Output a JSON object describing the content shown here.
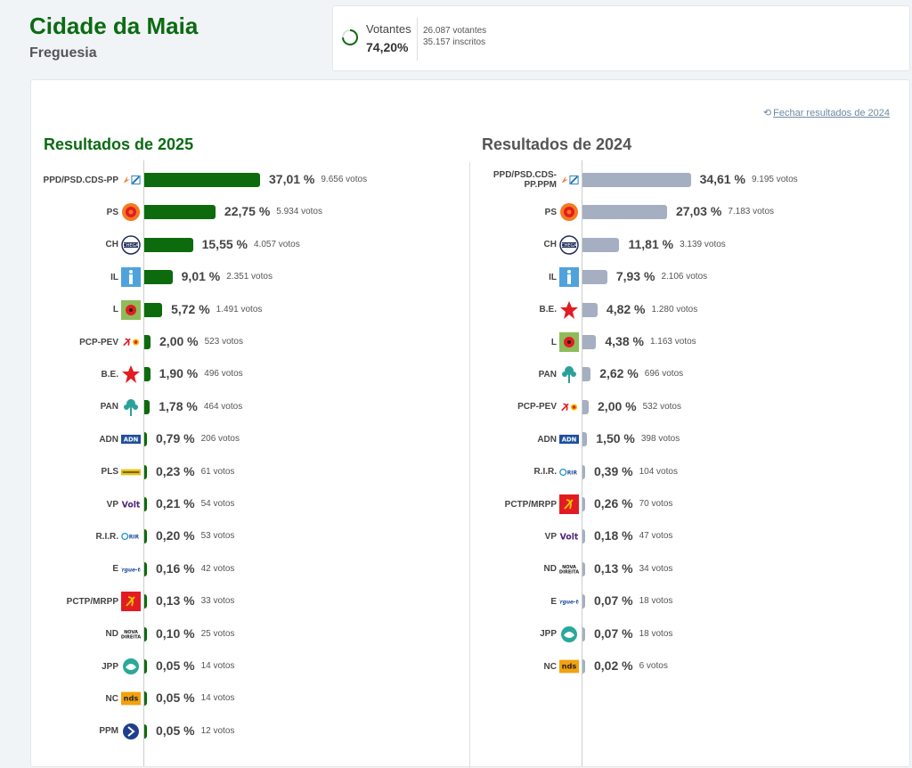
{
  "header": {
    "title": "Cidade da Maia",
    "subtitle": "Freguesia",
    "turnout": {
      "label": "Votantes",
      "percent": "74,20%",
      "percent_value": 74.2,
      "votantes": "26.087 votantes",
      "inscritos": "35.157 inscritos"
    }
  },
  "main": {
    "close_link": "Fechar resultados de 2024",
    "title_2025": "Resultados de 2025",
    "title_2024": "Resultados de 2024"
  },
  "colors": {
    "bar_2025": "#0d6b0d",
    "bar_2024": "#a5afc1",
    "title_green": "#0b6b12"
  },
  "chart_data": [
    {
      "type": "bar",
      "title": "Resultados de 2025",
      "orientation": "horizontal",
      "categories": [
        "PPD/PSD.CDS-PP",
        "PS",
        "CH",
        "IL",
        "L",
        "PCP-PEV",
        "B.E.",
        "PAN",
        "ADN",
        "PLS",
        "VP",
        "R.I.R.",
        "E",
        "PCTP/MRPP",
        "ND",
        "JPP",
        "NC",
        "PPM"
      ],
      "values": [
        37.01,
        22.75,
        15.55,
        9.01,
        5.72,
        2.0,
        1.9,
        1.78,
        0.79,
        0.23,
        0.21,
        0.2,
        0.16,
        0.13,
        0.1,
        0.05,
        0.05,
        0.05
      ],
      "value_labels": [
        "37,01 %",
        "22,75 %",
        "15,55 %",
        "9,01 %",
        "5,72 %",
        "2,00 %",
        "1,90 %",
        "1,78 %",
        "0,79 %",
        "0,23 %",
        "0,21 %",
        "0,20 %",
        "0,16 %",
        "0,13 %",
        "0,10 %",
        "0,05 %",
        "0,05 %",
        "0,05 %"
      ],
      "votes": [
        "9.656 votos",
        "5.934 votos",
        "4.057 votos",
        "2.351 votos",
        "1.491 votos",
        "523 votos",
        "496 votos",
        "464 votos",
        "206 votos",
        "61 votos",
        "54 votos",
        "53 votos",
        "42 votos",
        "33 votos",
        "25 votos",
        "14 votos",
        "14 votos",
        "12 votos"
      ],
      "logos": [
        "psd",
        "ps",
        "ch",
        "il",
        "l",
        "pcp",
        "be",
        "pan",
        "adn",
        "pls",
        "vp",
        "rir",
        "e",
        "pctp",
        "nd",
        "jpp",
        "nc",
        "ppm"
      ]
    },
    {
      "type": "bar",
      "title": "Resultados de 2024",
      "orientation": "horizontal",
      "categories": [
        "PPD/PSD.CDS-PP.PPM",
        "PS",
        "CH",
        "IL",
        "B.E.",
        "L",
        "PAN",
        "PCP-PEV",
        "ADN",
        "R.I.R.",
        "PCTP/MRPP",
        "VP",
        "ND",
        "E",
        "JPP",
        "NC"
      ],
      "values": [
        34.61,
        27.03,
        11.81,
        7.93,
        4.82,
        4.38,
        2.62,
        2.0,
        1.5,
        0.39,
        0.26,
        0.18,
        0.13,
        0.07,
        0.07,
        0.02
      ],
      "value_labels": [
        "34,61 %",
        "27,03 %",
        "11,81 %",
        "7,93 %",
        "4,82 %",
        "4,38 %",
        "2,62 %",
        "2,00 %",
        "1,50 %",
        "0,39 %",
        "0,26 %",
        "0,18 %",
        "0,13 %",
        "0,07 %",
        "0,07 %",
        "0,02 %"
      ],
      "votes": [
        "9.195 votos",
        "7.183 votos",
        "3.139 votos",
        "2.106 votos",
        "1.280 votos",
        "1.163 votos",
        "696 votos",
        "532 votos",
        "398 votos",
        "104 votos",
        "70 votos",
        "47 votos",
        "34 votos",
        "18 votos",
        "18 votos",
        "6 votos"
      ],
      "logos": [
        "psd",
        "ps",
        "ch",
        "il",
        "be",
        "l",
        "pan",
        "pcp",
        "adn",
        "rir",
        "pctp",
        "vp",
        "nd",
        "e",
        "jpp",
        "nc"
      ]
    }
  ]
}
